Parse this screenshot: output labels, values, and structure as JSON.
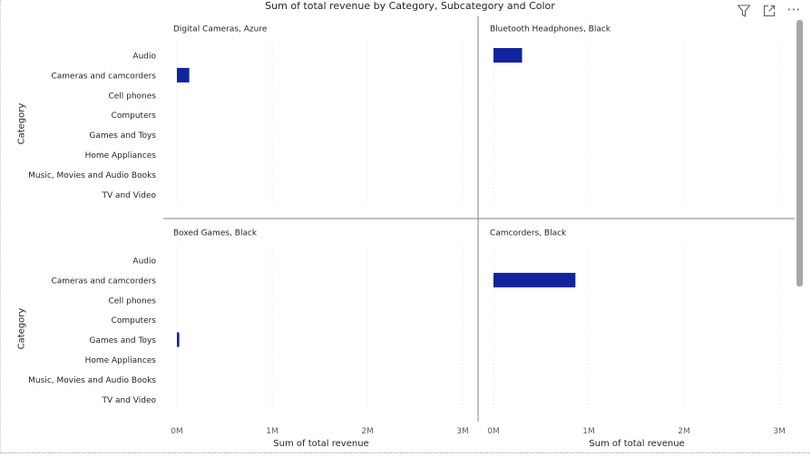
{
  "chart_data": {
    "type": "bar",
    "orientation": "horizontal",
    "title": "Sum of total revenue by Category, Subcategory and Color",
    "ylabel": "Category",
    "xlabel": "Sum of total revenue",
    "x_ticks": [
      {
        "value": 0,
        "label": "0M"
      },
      {
        "value": 1000000,
        "label": "1M"
      },
      {
        "value": 2000000,
        "label": "2M"
      },
      {
        "value": 3000000,
        "label": "3M"
      }
    ],
    "xlim": [
      0,
      3000000
    ],
    "categories": [
      "Audio",
      "Cameras and camcorders",
      "Cell phones",
      "Computers",
      "Games and Toys",
      "Home Appliances",
      "Music, Movies and Audio Books",
      "TV and Video"
    ],
    "bar_color": "#12239e",
    "panels": [
      {
        "label": "Digital Cameras, Azure",
        "values": [
          0,
          130000,
          0,
          0,
          0,
          0,
          0,
          0
        ]
      },
      {
        "label": "Bluetooth Headphones, Black",
        "values": [
          300000,
          0,
          0,
          0,
          0,
          0,
          0,
          0
        ]
      },
      {
        "label": "Boxed Games, Black",
        "values": [
          0,
          0,
          0,
          0,
          25000,
          0,
          0,
          0
        ]
      },
      {
        "label": "Camcorders, Black",
        "values": [
          0,
          860000,
          0,
          0,
          0,
          0,
          0,
          0
        ]
      }
    ]
  },
  "toolbar": {
    "icons": [
      "filter-icon",
      "focus-mode-icon",
      "more-options-icon"
    ],
    "more_glyph": "⋯"
  }
}
